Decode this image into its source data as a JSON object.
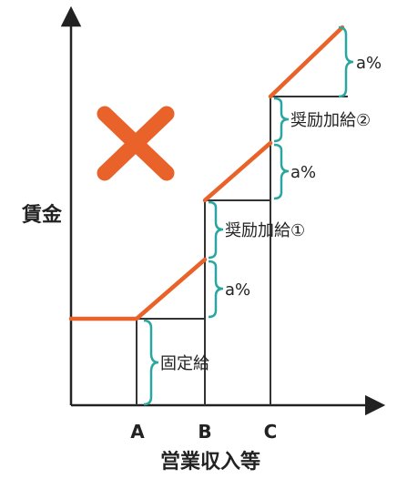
{
  "y_axis_label": "賃金",
  "x_axis_label": "営業収入等",
  "x_ticks": [
    "A",
    "B",
    "C"
  ],
  "annotations": {
    "fixed_pay": "固定給",
    "rate_1": "a%",
    "incentive_1": "奨励加給①",
    "rate_2": "a%",
    "incentive_2": "奨励加給②",
    "rate_3": "a%"
  },
  "colors": {
    "wage_line": "#e8622a",
    "brace": "#2aa6a0",
    "axis": "#222222",
    "guide": "#333333",
    "cross_mark": "#e8622a"
  },
  "icons": {
    "cross_mark": "x-mark-icon"
  }
}
